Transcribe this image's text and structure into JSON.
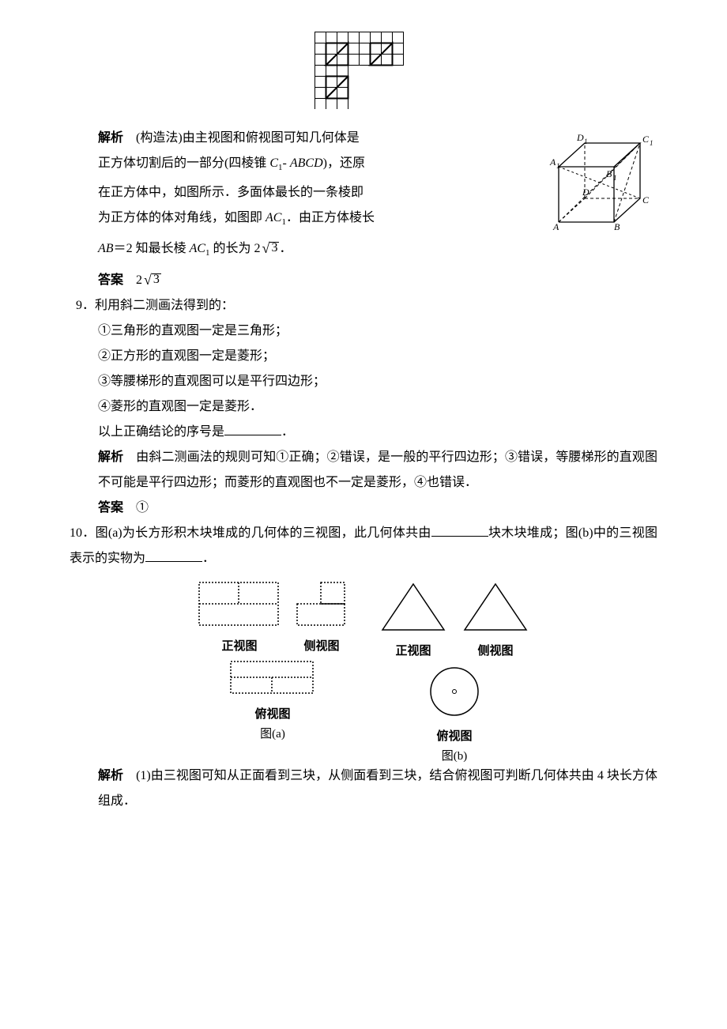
{
  "top_figure": {
    "alt": "grid-with-triangles"
  },
  "q8": {
    "analysis_label": "解析",
    "analysis_method": "(构造法)",
    "analysis_l1": "由主视图和俯视图可知几何体是",
    "analysis_l2_a": "正方体切割后的一部分(四棱锥 ",
    "analysis_l2_b": ")，还原",
    "pyramid_lbl_a": "C",
    "pyramid_lbl_b": "ABCD",
    "analysis_l3": "在正方体中，如图所示．多面体最长的一条棱即",
    "analysis_l4_a": "为正方体的体对角线，如图即 ",
    "analysis_l4_b": "．由正方体棱长",
    "ac1_a": "AC",
    "analysis_l5_a": " 知最长棱 ",
    "analysis_l5_b": " 的长为 ",
    "ab_eq_a": "AB",
    "ab_eq_op": "＝",
    "ab_eq_b": "2",
    "len_val": "2",
    "len_root": "3",
    "period": "．",
    "answer_label": "答案",
    "cube_labels": [
      "A",
      "B",
      "C",
      "D",
      "A₁",
      "B₁",
      "C₁",
      "D₁"
    ]
  },
  "q9": {
    "num": "9．",
    "stem": "利用斜二测画法得到的：",
    "items": [
      "①三角形的直观图一定是三角形；",
      "②正方形的直观图一定是菱形；",
      "③等腰梯形的直观图可以是平行四边形；",
      "④菱形的直观图一定是菱形．"
    ],
    "ask": "以上正确结论的序号是",
    "blank_w": 72,
    "period": "．",
    "analysis_label": "解析",
    "analysis_body": "由斜二测画法的规则可知①正确；②错误，是一般的平行四边形；③错误，等腰梯形的直观图不可能是平行四边形；而菱形的直观图也不一定是菱形，④也错误．",
    "answer_label": "答案",
    "answer_val": "①"
  },
  "q10": {
    "num": "10．",
    "stem_a": "图(a)为长方形积木块堆成的几何体的三视图，此几何体共由",
    "stem_b": "块木块堆成；图(b)中的三视图表示的实物为",
    "blank_w": 72,
    "period": "．",
    "view_labels": {
      "front": "正视图",
      "side": "侧视图",
      "top": "俯视图"
    },
    "fig_a": "图(a)",
    "fig_b": "图(b)",
    "analysis_label": "解析",
    "analysis_body": "(1)由三视图可知从正面看到三块，从侧面看到三块，结合俯视图可判断几何体共由 4 块长方体组成．"
  }
}
